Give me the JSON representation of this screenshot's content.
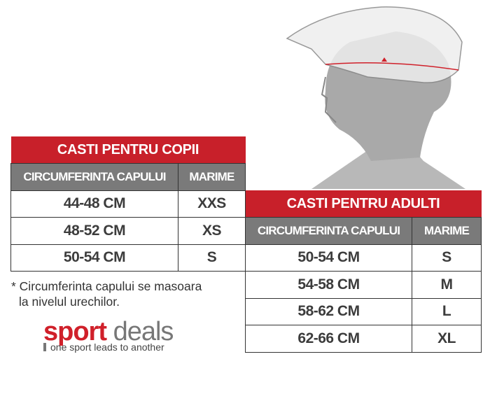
{
  "kids": {
    "title": "CASTI PENTRU COPII",
    "headers": [
      "CIRCUMFERINTA CAPULUI",
      "MARIME"
    ],
    "rows": [
      [
        "44-48 CM",
        "XXS"
      ],
      [
        "48-52 CM",
        "XS"
      ],
      [
        "50-54 CM",
        "S"
      ]
    ]
  },
  "adults": {
    "title": "CASTI PENTRU ADULTI",
    "headers": [
      "CIRCUMFERINTA CAPULUI",
      "MARIME"
    ],
    "rows": [
      [
        "50-54 CM",
        "S"
      ],
      [
        "54-58 CM",
        "M"
      ],
      [
        "58-62 CM",
        "L"
      ],
      [
        "62-66 CM",
        "XL"
      ]
    ]
  },
  "note": {
    "line1": "* Circumferinta capului se masoara",
    "line2": "la nivelul urechilor."
  },
  "logo": {
    "word1": "sport",
    "word2": "deals",
    "tagline": "one sport leads to another"
  },
  "colors": {
    "accent": "#c8202a",
    "header_gray": "#7a7a7a"
  }
}
